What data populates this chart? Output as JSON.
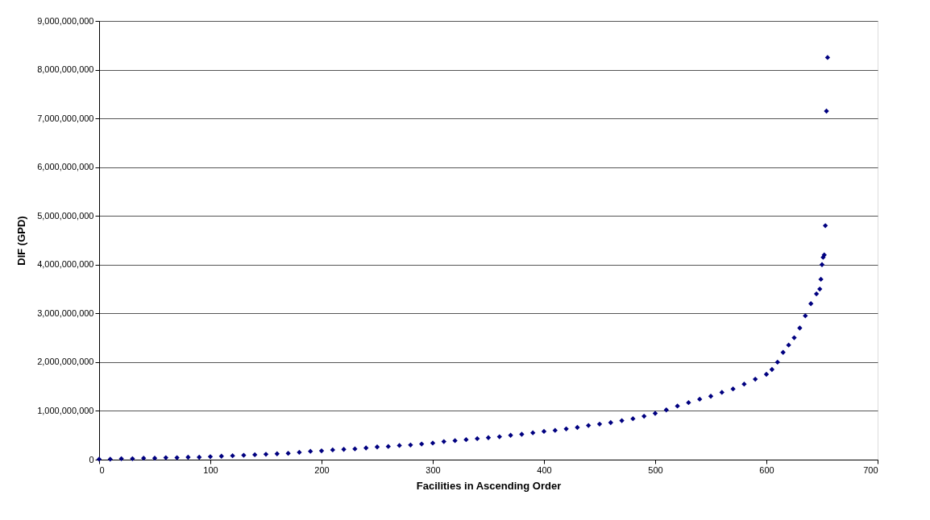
{
  "chart_data": {
    "type": "scatter",
    "xlabel": "Facilities in Ascending Order",
    "ylabel": "DIF (GPD)",
    "x": [
      0,
      10,
      20,
      30,
      40,
      50,
      60,
      70,
      80,
      90,
      100,
      110,
      120,
      130,
      140,
      150,
      160,
      170,
      180,
      190,
      200,
      210,
      220,
      230,
      240,
      250,
      260,
      270,
      280,
      290,
      300,
      310,
      320,
      330,
      340,
      350,
      360,
      370,
      380,
      390,
      400,
      410,
      420,
      430,
      440,
      450,
      460,
      470,
      480,
      490,
      500,
      510,
      520,
      530,
      540,
      550,
      560,
      570,
      580,
      590,
      600,
      605,
      610,
      615,
      620,
      625,
      630,
      635,
      640,
      645,
      648,
      649,
      650,
      651,
      652,
      653,
      654,
      655
    ],
    "series": [
      {
        "color": "#000080",
        "values": [
          10000000,
          10000000,
          20000000,
          20000000,
          30000000,
          30000000,
          40000000,
          40000000,
          50000000,
          50000000,
          60000000,
          70000000,
          80000000,
          90000000,
          100000000,
          110000000,
          120000000,
          130000000,
          150000000,
          170000000,
          180000000,
          200000000,
          210000000,
          220000000,
          240000000,
          260000000,
          270000000,
          290000000,
          300000000,
          320000000,
          340000000,
          370000000,
          390000000,
          410000000,
          430000000,
          450000000,
          470000000,
          500000000,
          520000000,
          550000000,
          580000000,
          600000000,
          630000000,
          660000000,
          700000000,
          730000000,
          760000000,
          800000000,
          840000000,
          890000000,
          950000000,
          1020000000,
          1100000000,
          1170000000,
          1240000000,
          1300000000,
          1380000000,
          1450000000,
          1550000000,
          1650000000,
          1750000000,
          1850000000,
          2000000000,
          2200000000,
          2350000000,
          2500000000,
          2700000000,
          2950000000,
          3200000000,
          3400000000,
          3500000000,
          3700000000,
          4000000000,
          4150000000,
          4200000000,
          4800000000,
          7150000000,
          8250000000
        ]
      }
    ],
    "xlim": [
      0,
      700
    ],
    "xticks": [
      0,
      100,
      200,
      300,
      400,
      500,
      600,
      700
    ],
    "ylim": [
      0,
      9000000000
    ],
    "yticks": [
      0,
      {
        "value": 1000000000,
        "label": "1,000,000,000"
      },
      {
        "value": 2000000000,
        "label": "2,000,000,000"
      },
      {
        "value": 3000000000,
        "label": "3,000,000,000"
      },
      {
        "value": 4000000000,
        "label": "4,000,000,000"
      },
      {
        "value": 5000000000,
        "label": "5,000,000,000"
      },
      {
        "value": 6000000000,
        "label": "6,000,000,000"
      },
      {
        "value": 7000000000,
        "label": "7,000,000,000"
      },
      {
        "value": 8000000000,
        "label": "8,000,000,000"
      },
      {
        "value": 9000000000,
        "label": "9,000,000,000"
      }
    ],
    "grid": "y",
    "marker": "diamond"
  }
}
